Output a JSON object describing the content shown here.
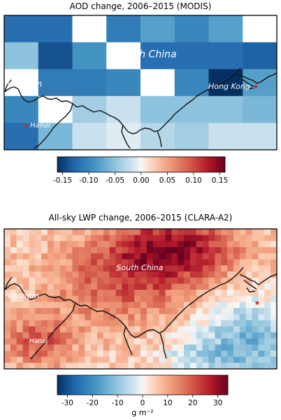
{
  "panels": [
    {
      "id": "aod",
      "title": "AOD change, 2006–2015 (MODIS)",
      "labels": {
        "region": "South China",
        "country": "Vietnam",
        "city1": "Hong Kong",
        "city2": "Hanoi"
      },
      "colorbar": {
        "ticks": [
          "-0.15",
          "-0.10",
          "-0.05",
          "0.00",
          "0.05",
          "0.10",
          "0.15"
        ],
        "unit": "",
        "range": [
          -0.16,
          0.16
        ]
      },
      "grid": {
        "cols": 8,
        "rows": 5,
        "values": [
          [
            -0.12,
            -0.12,
            null,
            -0.11,
            -0.08,
            -0.1,
            -0.08,
            null
          ],
          [
            -0.05,
            -0.14,
            -0.09,
            null,
            -0.12,
            -0.12,
            -0.12,
            -0.13
          ],
          [
            null,
            -0.11,
            -0.11,
            -0.1,
            null,
            -0.1,
            -0.16,
            -0.08
          ],
          [
            -0.1,
            null,
            -0.04,
            -0.02,
            -0.05,
            -0.05,
            -0.05,
            -0.06
          ],
          [
            -0.12,
            -0.06,
            -0.02,
            -0.01,
            -0.03,
            -0.04,
            -0.02,
            -0.02
          ]
        ]
      }
    },
    {
      "id": "lwp",
      "title": "All-sky LWP change, 2006–2015 (CLARA-A2)",
      "labels": {
        "region": "South China",
        "country": "Vietnam",
        "city1": "Hong Kong",
        "city2": "Hanoi"
      },
      "colorbar": {
        "ticks": [
          "-30",
          "-20",
          "-10",
          "0",
          "10",
          "20",
          "30"
        ],
        "unit": "g m⁻²",
        "range": [
          -34,
          34
        ]
      }
    }
  ],
  "colors": {
    "coast": "#111111",
    "marker": "#d62728",
    "label": "#ffffff"
  }
}
